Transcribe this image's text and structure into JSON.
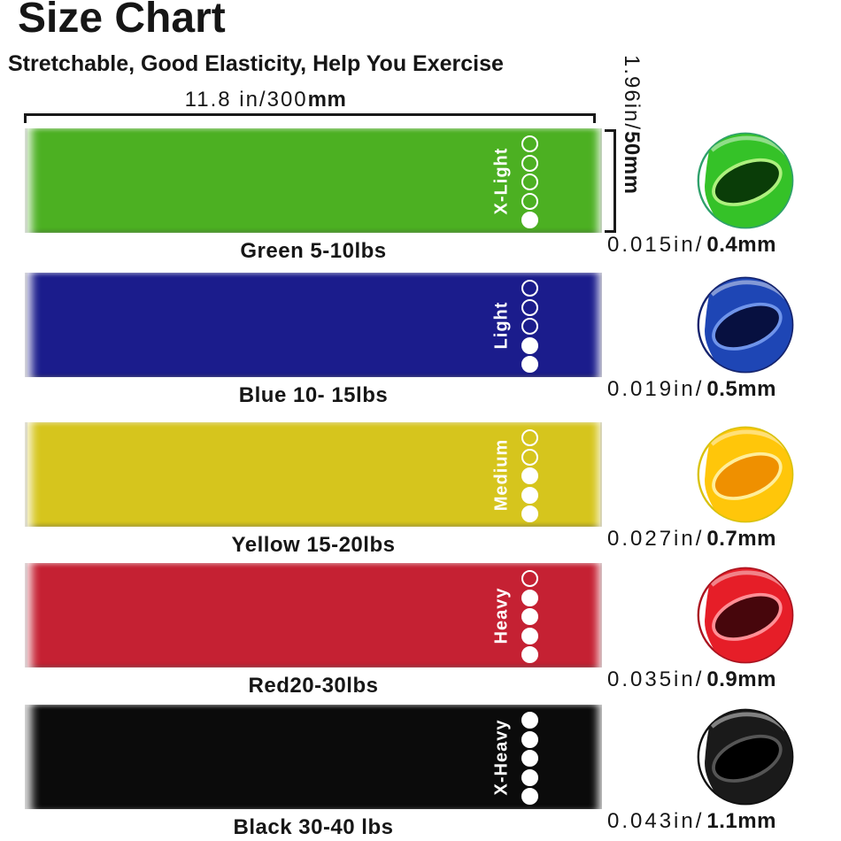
{
  "header": {
    "title": "Size Chart",
    "subtitle": "Stretchable, Good Elasticity, Help You Exercise"
  },
  "dimensions": {
    "width_value": "11.8 in/300",
    "width_unit_bold": "mm",
    "height_value": "1.96in/",
    "height_unit_bold": "50mm"
  },
  "theme": {
    "text_color": "#161616",
    "dot_and_label_color": "#ffffff",
    "background": "#ffffff",
    "bracket_color": "#191919"
  },
  "bands": [
    {
      "name": "green",
      "label": "X-Light",
      "caption": "Green 5-10lbs",
      "thickness_in": "0.015in/",
      "thickness_mm": "0.4mm",
      "level": 1,
      "dots_total": 5,
      "colors": {
        "band": "#4CB022",
        "photo": "#35C228",
        "fold": "#0A3D08",
        "rim": "#2FA06B",
        "highlight": "#AEF07E"
      }
    },
    {
      "name": "blue",
      "label": "Light",
      "caption": "Blue 10- 15lbs",
      "thickness_in": "0.019in/",
      "thickness_mm": "0.5mm",
      "level": 2,
      "dots_total": 5,
      "colors": {
        "band": "#1B1C8C",
        "photo": "#1E46B5",
        "fold": "#071040",
        "rim": "#15246E",
        "highlight": "#6F94EA"
      }
    },
    {
      "name": "yellow",
      "label": "Medium",
      "caption": "Yellow 15-20lbs",
      "thickness_in": "0.027in/",
      "thickness_mm": "0.7mm",
      "level": 3,
      "dots_total": 5,
      "colors": {
        "band": "#D6C51D",
        "photo": "#FFC60A",
        "fold": "#EF9000",
        "rim": "#D9C20E",
        "highlight": "#FFEE9A"
      }
    },
    {
      "name": "red",
      "label": "Heavy",
      "caption": "Red20-30lbs",
      "thickness_in": "0.035in/",
      "thickness_mm": "0.9mm",
      "level": 4,
      "dots_total": 5,
      "colors": {
        "band": "#C52133",
        "photo": "#E61E28",
        "fold": "#47060C",
        "rim": "#AA1420",
        "highlight": "#FF8F96"
      }
    },
    {
      "name": "black",
      "label": "X-Heavy",
      "caption": "Black 30-40 lbs",
      "thickness_in": "0.043in/",
      "thickness_mm": "1.1mm",
      "level": 5,
      "dots_total": 5,
      "colors": {
        "band": "#0B0B0B",
        "photo": "#1A1A1A",
        "fold": "#000000",
        "rim": "#101010",
        "highlight": "#555555"
      }
    }
  ]
}
